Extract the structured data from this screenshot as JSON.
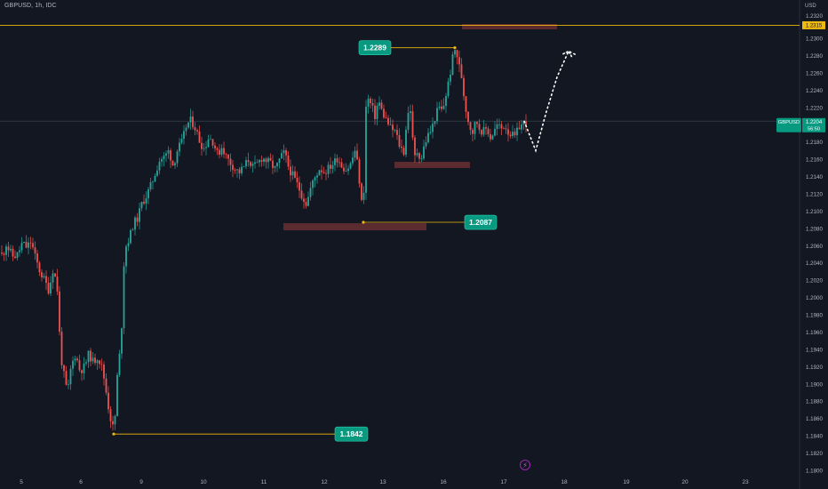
{
  "header": {
    "symbol_title": "GBPUSD, 1h, IDC",
    "currency": "USD"
  },
  "price_scale": {
    "ticks": [
      "1.2300",
      "1.2280",
      "1.2260",
      "1.2240",
      "1.2220",
      "1.2200",
      "1.2180",
      "1.2160",
      "1.2140",
      "1.2120",
      "1.2100",
      "1.2080",
      "1.2060",
      "1.2040",
      "1.2020",
      "1.2000",
      "1.1980",
      "1.1960",
      "1.1940",
      "1.1920",
      "1.1900",
      "1.1880",
      "1.1860",
      "1.1840",
      "1.1820",
      "1.1800"
    ],
    "top_tick_partial": "1.2320",
    "current_symbol": "GBPUSD",
    "current_price": "1.2204",
    "countdown": "56:50",
    "level_price": "1.2315"
  },
  "time_axis": {
    "labels": [
      "5",
      "6",
      "9",
      "10",
      "11",
      "12",
      "13",
      "16",
      "17",
      "18",
      "19",
      "20",
      "23"
    ]
  },
  "annotations": {
    "high_label": "1.2289",
    "mid_low_label": "1.2087",
    "low_label": "1.1842"
  },
  "icons": {
    "event": "lightning-icon"
  },
  "colors": {
    "background": "#131722",
    "up": "#26a69a",
    "down": "#ef5350",
    "level_line": "#f0b90b",
    "zone": "#5b2b30",
    "label_bg": "#089981",
    "text": "#b2b5be"
  },
  "chart_data": {
    "type": "candlestick",
    "title": "GBPUSD, 1h, IDC",
    "y_unit": "USD",
    "ylim": [
      1.1796,
      1.2326
    ],
    "x_categories": [
      "5",
      "6",
      "9",
      "10",
      "11",
      "12",
      "13",
      "16",
      "17",
      "18",
      "19",
      "20",
      "23"
    ],
    "horizontal_level": 1.2315,
    "price_labels": [
      1.2289,
      1.2087,
      1.1842
    ],
    "current_price": 1.2204,
    "price_path": [
      [
        0,
        1.2052
      ],
      [
        3,
        1.2048
      ],
      [
        7,
        1.2062
      ],
      [
        10,
        1.2055
      ],
      [
        15,
        1.2047
      ],
      [
        20,
        1.205
      ],
      [
        25,
        1.2063
      ],
      [
        30,
        1.2058
      ],
      [
        35,
        1.2065
      ],
      [
        40,
        1.2045
      ],
      [
        45,
        1.203
      ],
      [
        50,
        1.202
      ],
      [
        55,
        1.2008
      ],
      [
        60,
        1.2035
      ],
      [
        65,
        1.2006
      ],
      [
        68,
        1.1935
      ],
      [
        72,
        1.191
      ],
      [
        76,
        1.1888
      ],
      [
        80,
        1.192
      ],
      [
        85,
        1.1935
      ],
      [
        90,
        1.1915
      ],
      [
        95,
        1.192
      ],
      [
        100,
        1.1935
      ],
      [
        105,
        1.1925
      ],
      [
        110,
        1.1932
      ],
      [
        115,
        1.1918
      ],
      [
        118,
        1.1902
      ],
      [
        121,
        1.188
      ],
      [
        124,
        1.1862
      ],
      [
        127,
        1.185
      ],
      [
        130,
        1.1865
      ],
      [
        133,
        1.193
      ],
      [
        136,
        1.1935
      ],
      [
        139,
        1.2035
      ],
      [
        142,
        1.206
      ],
      [
        146,
        1.207
      ],
      [
        150,
        1.2085
      ],
      [
        155,
        1.2092
      ],
      [
        160,
        1.211
      ],
      [
        165,
        1.2118
      ],
      [
        170,
        1.213
      ],
      [
        175,
        1.2145
      ],
      [
        180,
        1.216
      ],
      [
        185,
        1.2162
      ],
      [
        190,
        1.217
      ],
      [
        195,
        1.2152
      ],
      [
        200,
        1.2172
      ],
      [
        205,
        1.218
      ],
      [
        210,
        1.22
      ],
      [
        215,
        1.2205
      ],
      [
        220,
        1.2196
      ],
      [
        225,
        1.218
      ],
      [
        230,
        1.2172
      ],
      [
        235,
        1.2186
      ],
      [
        240,
        1.218
      ],
      [
        245,
        1.2165
      ],
      [
        250,
        1.2175
      ],
      [
        255,
        1.2162
      ],
      [
        260,
        1.2155
      ],
      [
        265,
        1.2148
      ],
      [
        270,
        1.2145
      ],
      [
        275,
        1.2152
      ],
      [
        280,
        1.216
      ],
      [
        285,
        1.215
      ],
      [
        290,
        1.2155
      ],
      [
        295,
        1.2162
      ],
      [
        300,
        1.2158
      ],
      [
        305,
        1.2155
      ],
      [
        310,
        1.2148
      ],
      [
        315,
        1.216
      ],
      [
        320,
        1.2168
      ],
      [
        325,
        1.215
      ],
      [
        330,
        1.214
      ],
      [
        335,
        1.213
      ],
      [
        340,
        1.2118
      ],
      [
        345,
        1.2108
      ],
      [
        350,
        1.2128
      ],
      [
        355,
        1.214
      ],
      [
        360,
        1.215
      ],
      [
        365,
        1.2145
      ],
      [
        370,
        1.215
      ],
      [
        375,
        1.2155
      ],
      [
        380,
        1.2162
      ],
      [
        385,
        1.2152
      ],
      [
        390,
        1.2148
      ],
      [
        395,
        1.2155
      ],
      [
        400,
        1.2172
      ],
      [
        404,
        1.214
      ],
      [
        407,
        1.211
      ],
      [
        409,
        1.2095
      ],
      [
        411,
        1.2215
      ],
      [
        414,
        1.223
      ],
      [
        418,
        1.2222
      ],
      [
        422,
        1.221
      ],
      [
        426,
        1.2228
      ],
      [
        430,
        1.2215
      ],
      [
        435,
        1.2205
      ],
      [
        440,
        1.2195
      ],
      [
        445,
        1.2192
      ],
      [
        450,
        1.2175
      ],
      [
        455,
        1.2168
      ],
      [
        458,
        1.221
      ],
      [
        462,
        1.2218
      ],
      [
        466,
        1.216
      ],
      [
        470,
        1.217
      ],
      [
        474,
        1.216
      ],
      [
        478,
        1.2178
      ],
      [
        482,
        1.2188
      ],
      [
        486,
        1.2195
      ],
      [
        490,
        1.221
      ],
      [
        494,
        1.222
      ],
      [
        498,
        1.2215
      ],
      [
        502,
        1.2235
      ],
      [
        506,
        1.2255
      ],
      [
        510,
        1.228
      ],
      [
        513,
        1.2289
      ],
      [
        516,
        1.227
      ],
      [
        519,
        1.226
      ],
      [
        522,
        1.2235
      ],
      [
        525,
        1.2215
      ],
      [
        528,
        1.22
      ],
      [
        532,
        1.2192
      ],
      [
        536,
        1.2205
      ],
      [
        540,
        1.2195
      ],
      [
        544,
        1.2192
      ],
      [
        548,
        1.2196
      ],
      [
        552,
        1.2185
      ],
      [
        556,
        1.2192
      ],
      [
        560,
        1.22
      ],
      [
        564,
        1.2195
      ],
      [
        568,
        1.22
      ],
      [
        572,
        1.2192
      ],
      [
        576,
        1.2188
      ],
      [
        580,
        1.2185
      ],
      [
        584,
        1.2198
      ],
      [
        588,
        1.22
      ],
      [
        592,
        1.2204
      ]
    ],
    "projection": [
      [
        590,
        1.2204
      ],
      [
        603,
        1.217
      ],
      [
        615,
        1.2215
      ],
      [
        627,
        1.2255
      ],
      [
        640,
        1.2285
      ],
      [
        650,
        1.228
      ]
    ]
  }
}
